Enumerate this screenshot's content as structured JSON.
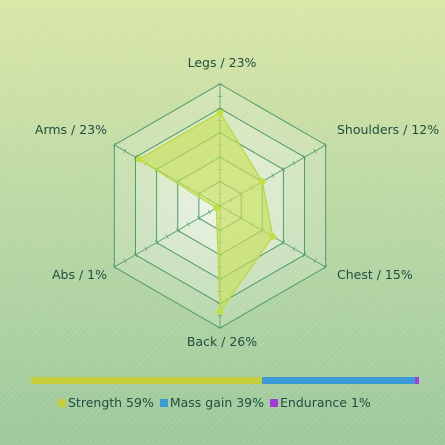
{
  "chart_data": {
    "type": "radar",
    "axes": [
      {
        "label": "Legs / 23%",
        "value": 23
      },
      {
        "label": "Shoulders / 12%",
        "value": 12
      },
      {
        "label": "Chest / 15%",
        "value": 15
      },
      {
        "label": "Back / 26%",
        "value": 26
      },
      {
        "label": "Abs / 1%",
        "value": 1
      },
      {
        "label": "Arms / 23%",
        "value": 23
      }
    ],
    "rmax": 30,
    "rings": 5,
    "colors": {
      "fill": "#c8e05a",
      "stroke": "#b9d83a",
      "point": "#c2e03a",
      "grid": "#4f9a6a"
    }
  },
  "summary_bar": {
    "segments": [
      {
        "label": "Strength 59%",
        "value": 59,
        "color": "#c8cf3d"
      },
      {
        "label": "Mass gain 39%",
        "value": 39,
        "color": "#3b9bd6"
      },
      {
        "label": "Endurance 1%",
        "value": 1,
        "color": "#a43ad8"
      }
    ]
  }
}
